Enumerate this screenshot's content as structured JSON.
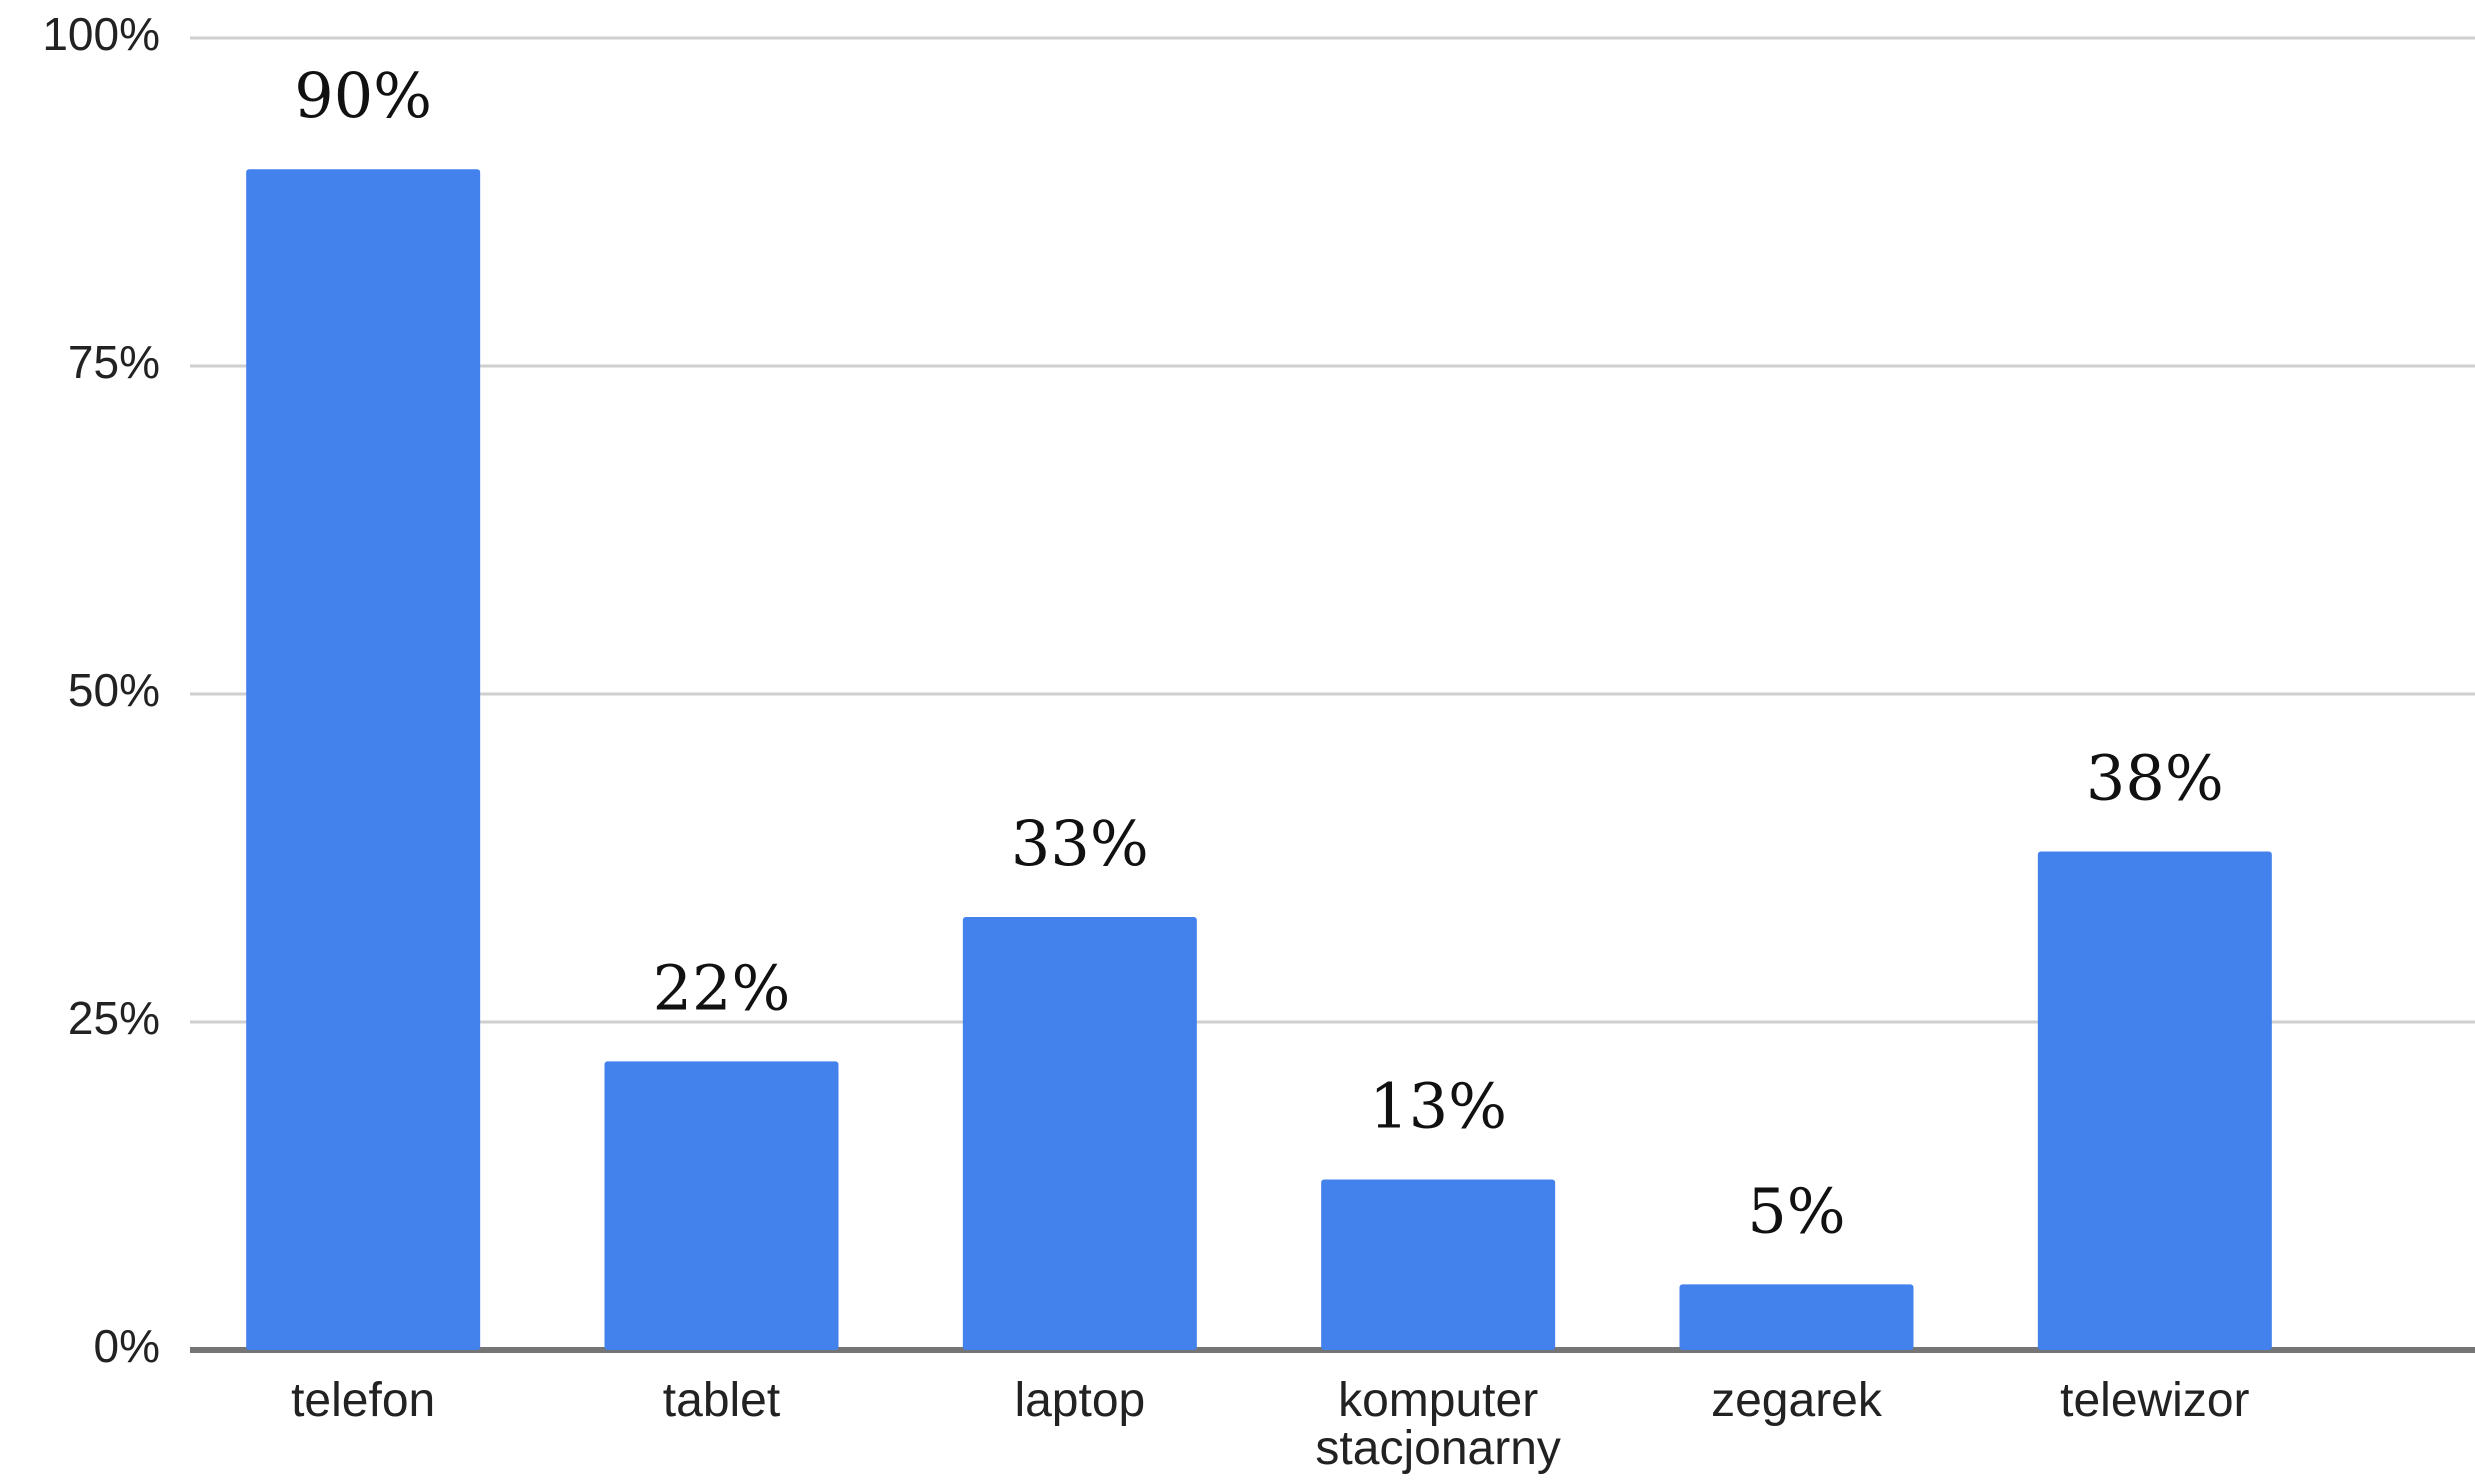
{
  "chart_data": {
    "type": "bar",
    "categories": [
      "telefon",
      "tablet",
      "laptop",
      "komputer stacjonarny",
      "zegarek",
      "telewizor"
    ],
    "category_lines": [
      [
        "telefon"
      ],
      [
        "tablet"
      ],
      [
        "laptop"
      ],
      [
        "komputer",
        "stacjonarny"
      ],
      [
        "zegarek"
      ],
      [
        "telewizor"
      ]
    ],
    "values": [
      90,
      22,
      33,
      13,
      5,
      38
    ],
    "data_labels": [
      "90%",
      "22%",
      "33%",
      "13%",
      "5%",
      "38%"
    ],
    "title": "",
    "xlabel": "",
    "ylabel": "",
    "ylim": [
      0,
      100
    ],
    "yticks": [
      0,
      25,
      50,
      75,
      100
    ],
    "ytick_labels": [
      "0%",
      "25%",
      "50%",
      "75%",
      "100%"
    ],
    "grid": true,
    "legend": "none",
    "bar_color": "#4381ec"
  }
}
